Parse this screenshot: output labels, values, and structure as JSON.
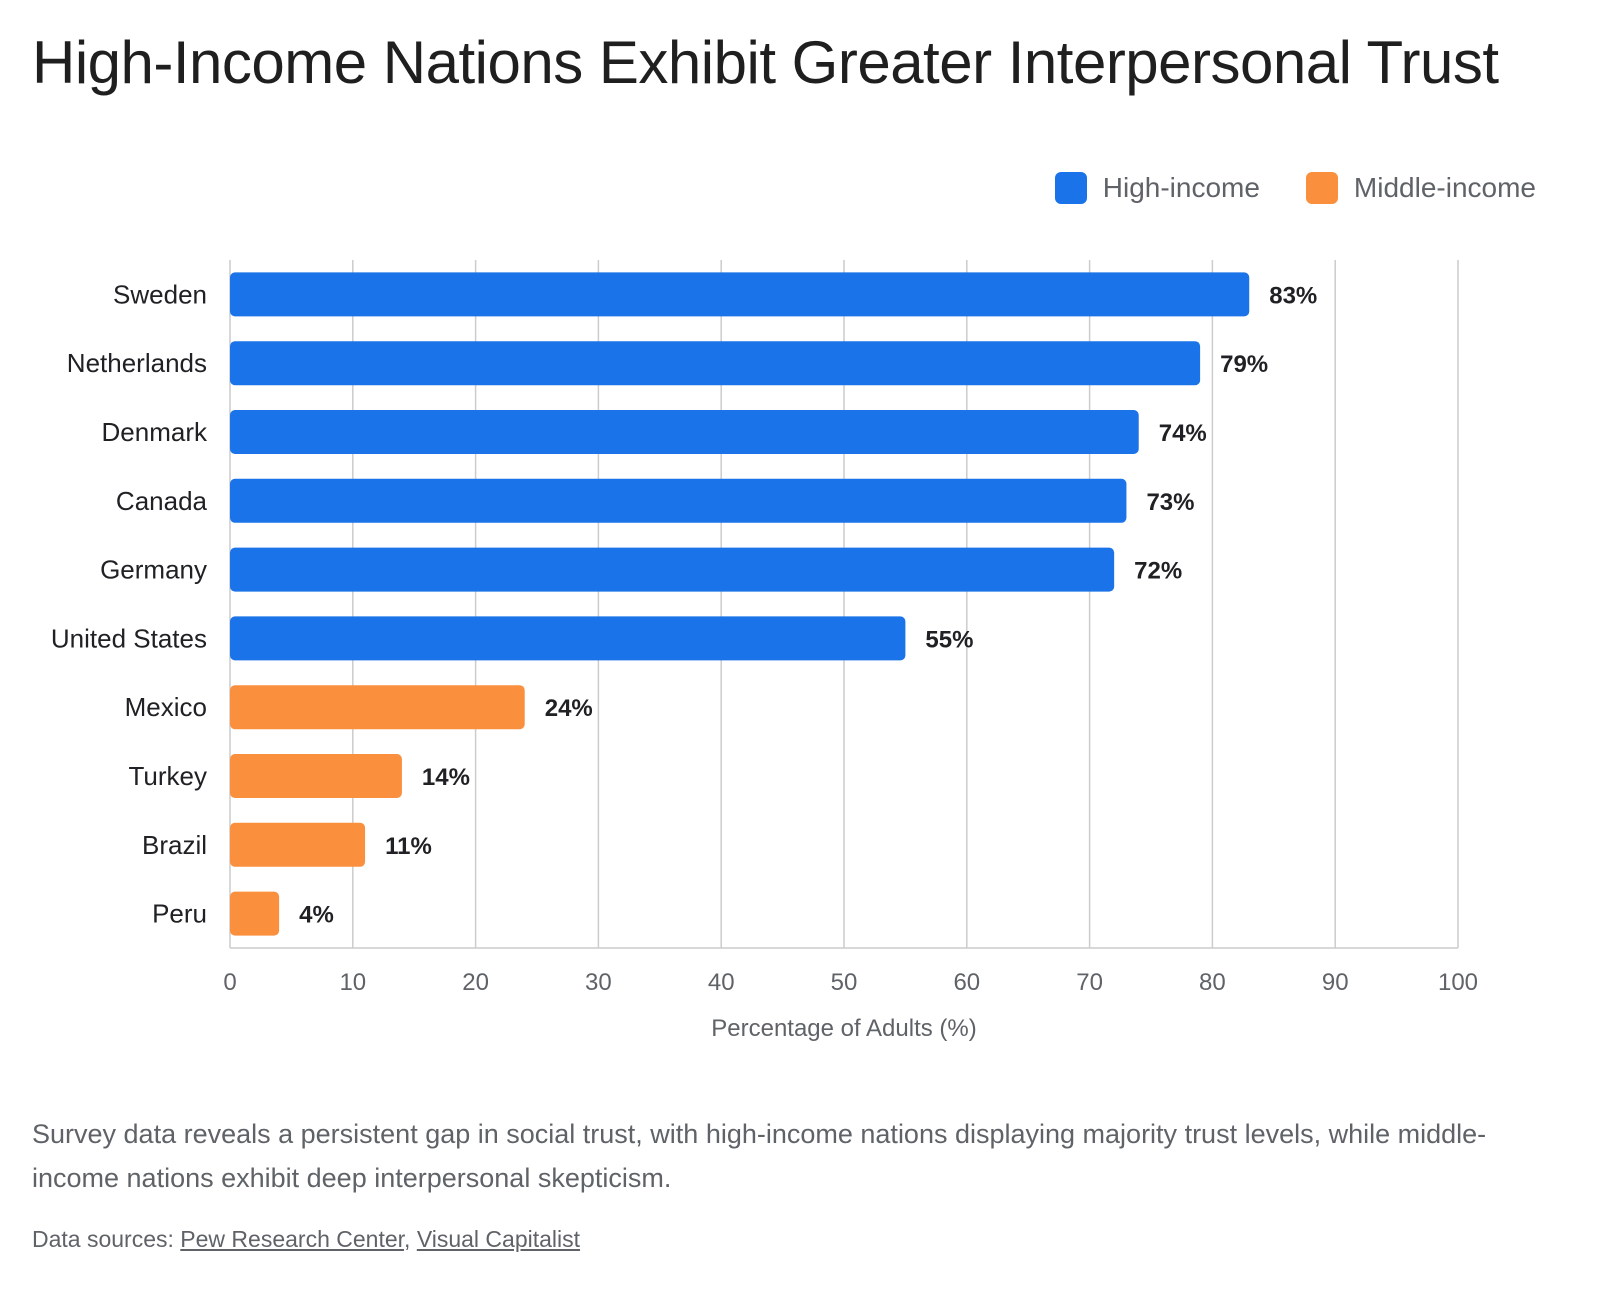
{
  "title": "High-Income Nations Exhibit Greater Interpersonal Trust",
  "legend": {
    "items": [
      {
        "label": "High-income",
        "color": "#1a73e8"
      },
      {
        "label": "Middle-income",
        "color": "#fa903e"
      }
    ]
  },
  "caption": "Survey data reveals a persistent gap in social trust, with high-income nations displaying majority trust levels, while middle-income nations exhibit deep interpersonal skepticism.",
  "sources": {
    "prefix": "Data sources:",
    "separator": ",",
    "links": [
      "Pew Research Center",
      "Visual Capitalist"
    ]
  },
  "chart_data": {
    "type": "bar",
    "orientation": "horizontal",
    "categories": [
      "Sweden",
      "Netherlands",
      "Denmark",
      "Canada",
      "Germany",
      "United States",
      "Mexico",
      "Turkey",
      "Brazil",
      "Peru"
    ],
    "values": [
      83,
      79,
      74,
      73,
      72,
      55,
      24,
      14,
      11,
      4
    ],
    "value_labels": [
      "83%",
      "79%",
      "74%",
      "73%",
      "72%",
      "55%",
      "24%",
      "14%",
      "11%",
      "4%"
    ],
    "groups": [
      "High-income",
      "High-income",
      "High-income",
      "High-income",
      "High-income",
      "High-income",
      "Middle-income",
      "Middle-income",
      "Middle-income",
      "Middle-income"
    ],
    "xlabel": "Percentage of Adults (%)",
    "ylabel": "",
    "xlim": [
      0,
      100
    ],
    "xticks": [
      0,
      10,
      20,
      30,
      40,
      50,
      60,
      70,
      80,
      90,
      100
    ],
    "grid": true,
    "legend_position": "top-right"
  }
}
